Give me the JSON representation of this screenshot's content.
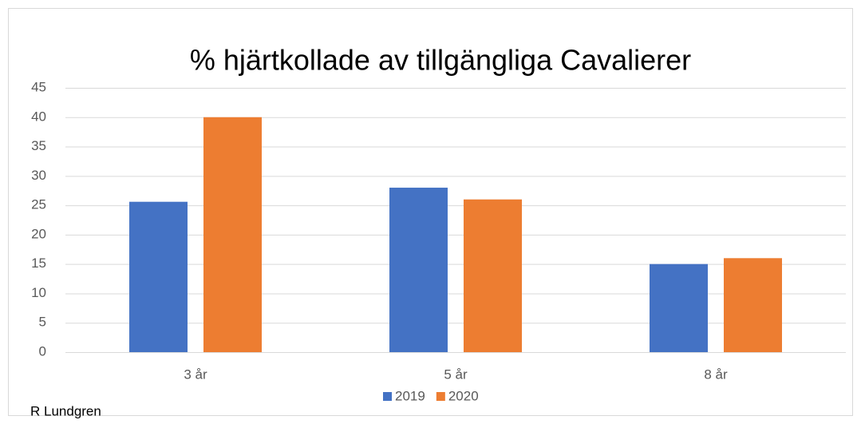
{
  "chart_data": {
    "type": "bar",
    "title": "% hjärtkollade av tillgängliga Cavalierer",
    "categories": [
      "3 år",
      "5 år",
      "8 år"
    ],
    "series": [
      {
        "name": "2019",
        "color": "#4472c4",
        "values": [
          25.6,
          28,
          15
        ]
      },
      {
        "name": "2020",
        "color": "#ed7d31",
        "values": [
          40,
          26,
          16
        ]
      }
    ],
    "ylim": [
      0,
      45
    ],
    "yticks": [
      0,
      5,
      10,
      15,
      20,
      25,
      30,
      35,
      40,
      45
    ],
    "grid": true,
    "legend": "bottom",
    "annotation": "R Lundgren"
  }
}
